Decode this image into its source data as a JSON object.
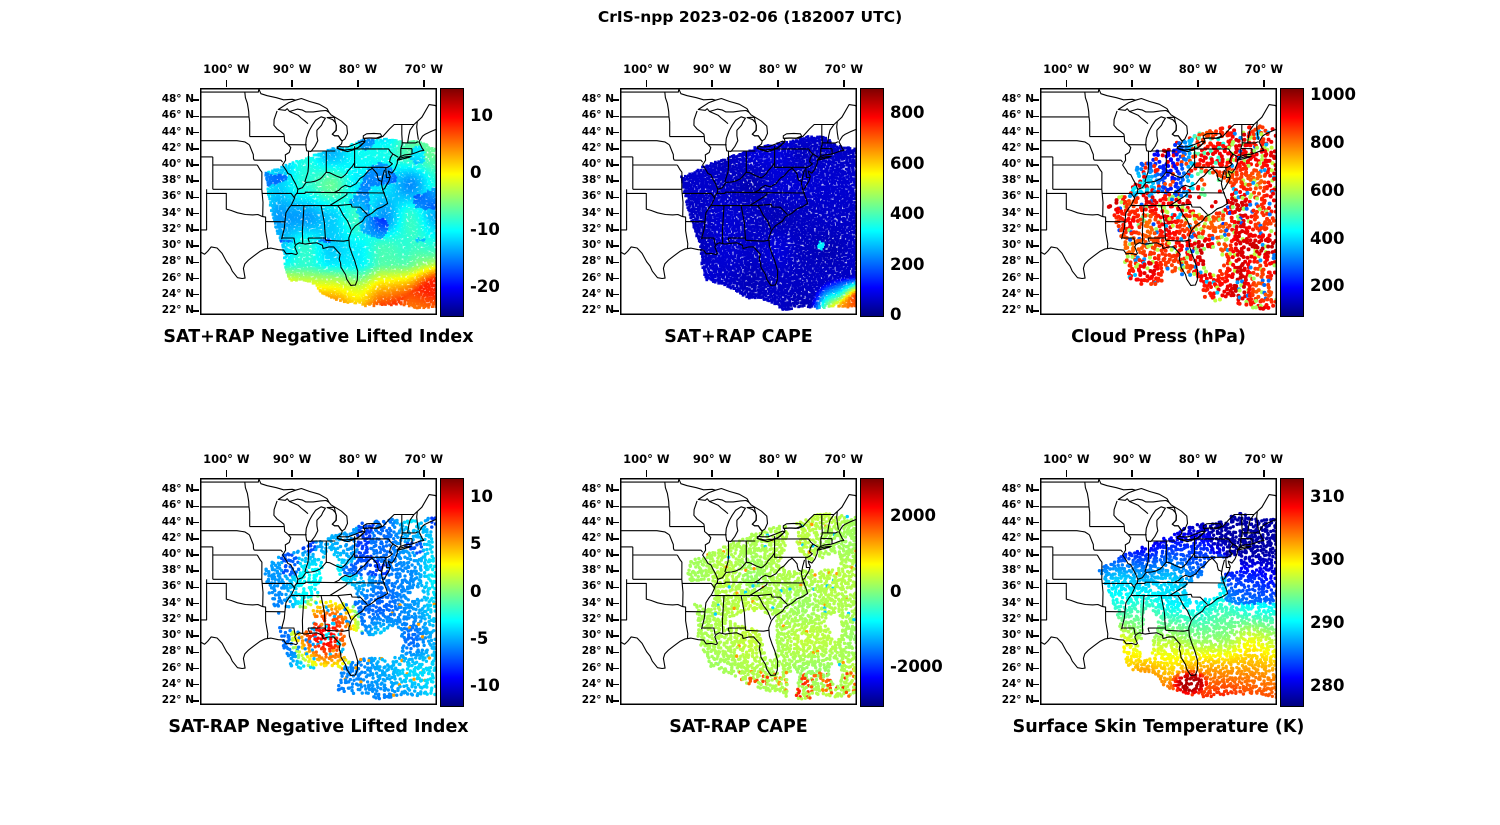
{
  "title": "CrIS-npp 2023-02-06 (182007 UTC)",
  "colors": {
    "background": "#ffffff",
    "map_line": "#000000",
    "colorbar_gradient": [
      "#7f0000",
      "#ff0000",
      "#ff7f00",
      "#ffff00",
      "#7fff7f",
      "#00ffff",
      "#007fff",
      "#0000ff",
      "#00007f"
    ]
  },
  "axes": {
    "lon_ticks": [
      {
        "value": -100,
        "label": "100° W"
      },
      {
        "value": -90,
        "label": "90° W"
      },
      {
        "value": -80,
        "label": "80° W"
      },
      {
        "value": -70,
        "label": "70° W"
      }
    ],
    "lat_ticks": [
      {
        "value": 48,
        "label": "48° N"
      },
      {
        "value": 46,
        "label": "46° N"
      },
      {
        "value": 44,
        "label": "44° N"
      },
      {
        "value": 42,
        "label": "42° N"
      },
      {
        "value": 40,
        "label": "40° N"
      },
      {
        "value": 38,
        "label": "38° N"
      },
      {
        "value": 36,
        "label": "36° N"
      },
      {
        "value": 34,
        "label": "34° N"
      },
      {
        "value": 32,
        "label": "32° N"
      },
      {
        "value": 30,
        "label": "30° N"
      },
      {
        "value": 28,
        "label": "28° N"
      },
      {
        "value": 26,
        "label": "26° N"
      },
      {
        "value": 24,
        "label": "24° N"
      },
      {
        "value": 22,
        "label": "22° N"
      }
    ]
  },
  "panels": [
    {
      "title": "SAT+RAP Negative Lifted Index",
      "style": "swath",
      "colorbar": {
        "min": -25,
        "max": 15,
        "ticks": [
          {
            "value": 10,
            "label": "10"
          },
          {
            "value": 0,
            "label": "0"
          },
          {
            "value": -10,
            "label": "-10"
          },
          {
            "value": -20,
            "label": "-20"
          }
        ]
      }
    },
    {
      "title": "SAT+RAP CAPE",
      "style": "swath",
      "colorbar": {
        "min": 0,
        "max": 900,
        "ticks": [
          {
            "value": 800,
            "label": "800"
          },
          {
            "value": 600,
            "label": "600"
          },
          {
            "value": 400,
            "label": "400"
          },
          {
            "value": 200,
            "label": "200"
          },
          {
            "value": 0,
            "label": "0"
          }
        ]
      }
    },
    {
      "title": "Cloud Press (hPa)",
      "style": "dots",
      "colorbar": {
        "min": 80,
        "max": 1030,
        "ticks": [
          {
            "value": 1000,
            "label": "1000"
          },
          {
            "value": 800,
            "label": "800"
          },
          {
            "value": 600,
            "label": "600"
          },
          {
            "value": 400,
            "label": "400"
          },
          {
            "value": 200,
            "label": "200"
          }
        ]
      }
    },
    {
      "title": "SAT-RAP Negative Lifted Index",
      "style": "dots",
      "colorbar": {
        "min": -12,
        "max": 12,
        "ticks": [
          {
            "value": 10,
            "label": "10"
          },
          {
            "value": 5,
            "label": "5"
          },
          {
            "value": 0,
            "label": "0"
          },
          {
            "value": -5,
            "label": "-5"
          },
          {
            "value": -10,
            "label": "-10"
          }
        ]
      }
    },
    {
      "title": "SAT-RAP CAPE",
      "style": "dots",
      "colorbar": {
        "min": -3000,
        "max": 3000,
        "ticks": [
          {
            "value": 2000,
            "label": "2000"
          },
          {
            "value": 0,
            "label": "0"
          },
          {
            "value": -2000,
            "label": "-2000"
          }
        ]
      }
    },
    {
      "title": "Surface Skin Temperature (K)",
      "style": "dots",
      "colorbar": {
        "min": 277,
        "max": 313,
        "ticks": [
          {
            "value": 310,
            "label": "310"
          },
          {
            "value": 300,
            "label": "300"
          },
          {
            "value": 290,
            "label": "290"
          },
          {
            "value": 280,
            "label": "280"
          }
        ]
      }
    }
  ],
  "chart_data": {
    "type": "heatmap",
    "figure_title": "CrIS-npp 2023-02-06 (182007 UTC)",
    "instrument": "CrIS-npp",
    "datetime_label": "2023-02-06 182007 UTC",
    "map_extent": {
      "lon": [
        -104,
        -68
      ],
      "lat": [
        21.5,
        49.5
      ]
    },
    "colormap": "jet",
    "grid": "2x3 map panels, each with vertical jet colorbar",
    "panels": [
      {
        "row": 1,
        "col": 1,
        "title": "SAT+RAP Negative Lifted Index",
        "colorbar_range": [
          -25,
          15
        ],
        "colorbar_ticks": [
          10,
          0,
          -10,
          -20
        ],
        "pattern": "dense satellite swath over the southeastern US and western Atlantic; mostly -15 to -5 (cyan/blue) with values near 0 to +8 (yellow/orange) along the southern and eastern swath edges"
      },
      {
        "row": 1,
        "col": 2,
        "title": "SAT+RAP CAPE",
        "colorbar_range": [
          0,
          900
        ],
        "colorbar_ticks": [
          800,
          600,
          400,
          200,
          0
        ],
        "pattern": "near-zero CAPE (dark blue) across the whole swath; 600-900 (orange/red) only at the far southeast corner near 22-26N, 65-75W"
      },
      {
        "row": 1,
        "col": 3,
        "title": "Cloud Press (hPa)",
        "colorbar_range": [
          80,
          1030
        ],
        "colorbar_ticks": [
          1000,
          800,
          600,
          400,
          200
        ],
        "pattern": "scattered retrievals; high cloud pressure 700-950 hPa (orange) over the Gulf coast, Southeast and Atlantic; low 200-450 hPa (blue/cyan) clustered over the Ohio valley and Midwest; gaps over the Carolinas"
      },
      {
        "row": 2,
        "col": 1,
        "title": "SAT-RAP Negative Lifted Index",
        "colorbar_range": [
          -12,
          12
        ],
        "colorbar_ticks": [
          10,
          5,
          0,
          -5,
          -10
        ],
        "pattern": "differences mostly -4 to 0 (cyan/blue); +4 to +9 (orange/red) cluster over Florida, Georgia and the Gulf coast; scattered dark blue in the north"
      },
      {
        "row": 2,
        "col": 2,
        "title": "SAT-RAP CAPE",
        "colorbar_range": [
          -3000,
          3000
        ],
        "colorbar_ticks": [
          2000,
          0,
          -2000
        ],
        "pattern": "differences near 0 (uniform light green) almost everywhere; a few positive (orange) points near south Florida and the Keys"
      },
      {
        "row": 2,
        "col": 3,
        "title": "Surface Skin Temperature (K)",
        "colorbar_range": [
          277,
          313
        ],
        "colorbar_ticks": [
          310,
          300,
          290,
          280
        ],
        "pattern": "north-south gradient from ~280 K (dark blue) in the Northeast and Midwest through ~290 K (cyan) mid-latitudes to ~300-308 K (yellow/orange/red) near Florida and the Keys; cold dark blue along the northwest Atlantic coast"
      }
    ]
  }
}
